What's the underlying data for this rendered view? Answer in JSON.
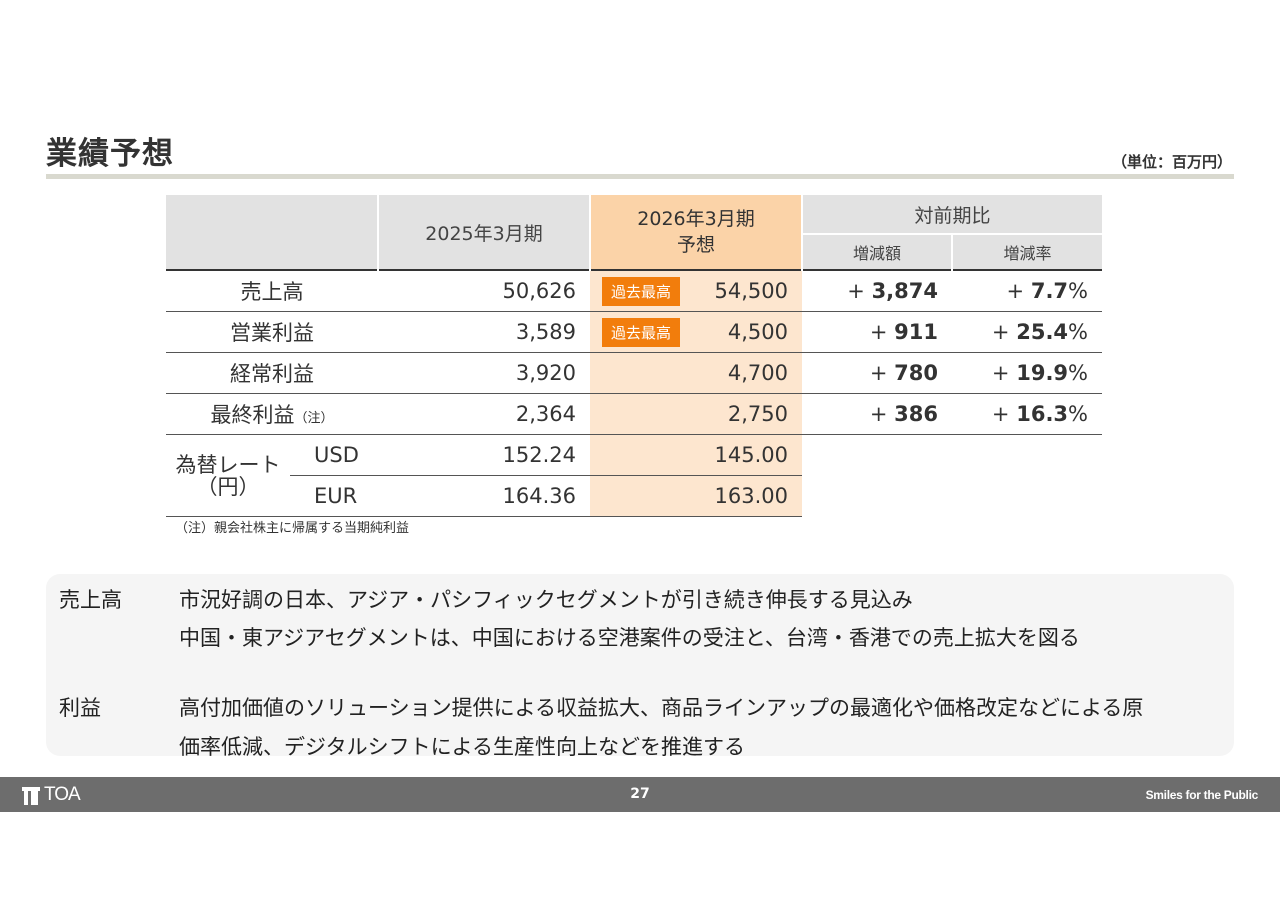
{
  "page": {
    "title": "業績予想",
    "unit": "（単位：百万円）",
    "page_number": "27"
  },
  "table": {
    "headers": {
      "prior": "2025年3月期",
      "forecast_line1": "2026年3月期",
      "forecast_line2": "予想",
      "comparison": "対前期比",
      "diff_amount": "増減額",
      "diff_rate": "増減率"
    },
    "record_badge": "過去最高",
    "rows": [
      {
        "label": "売上高",
        "note": "",
        "prior": "50,626",
        "forecast": "54,500",
        "record": true,
        "diff_sign": "+",
        "diff": "3,874",
        "rate_sign": "+",
        "rate": "7.7",
        "pct": "%"
      },
      {
        "label": "営業利益",
        "note": "",
        "prior": "3,589",
        "forecast": "4,500",
        "record": true,
        "diff_sign": "+",
        "diff": "911",
        "rate_sign": "+",
        "rate": "25.4",
        "pct": "%"
      },
      {
        "label": "経常利益",
        "note": "",
        "prior": "3,920",
        "forecast": "4,700",
        "record": false,
        "diff_sign": "+",
        "diff": "780",
        "rate_sign": "+",
        "rate": "19.9",
        "pct": "%"
      },
      {
        "label": "最終利益",
        "note": "（注）",
        "prior": "2,364",
        "forecast": "2,750",
        "record": false,
        "diff_sign": "+",
        "diff": "386",
        "rate_sign": "+",
        "rate": "16.3",
        "pct": "%"
      }
    ],
    "fx": {
      "label_line1": "為替レート",
      "label_line2": "（円）",
      "usd": {
        "currency": "USD",
        "prior": "152.24",
        "forecast": "145.00"
      },
      "eur": {
        "currency": "EUR",
        "prior": "164.36",
        "forecast": "163.00"
      }
    },
    "footnote": "（注）親会社株主に帰属する当期純利益"
  },
  "summary": {
    "sales_label": "売上高",
    "sales_line1": "市況好調の日本、アジア・パシフィックセグメントが引き続き伸長する見込み",
    "sales_line2": "中国・東アジアセグメントは、中国における空港案件の受注と、台湾・香港での売上拡大を図る",
    "profit_label": "利益",
    "profit_line1": "高付加価値のソリューション提供による収益拡大、商品ラインアップの最適化や価格改定などによる原",
    "profit_line2": "価率低減、デジタルシフトによる生産性向上などを推進する"
  },
  "footer": {
    "logo_text": "TOA",
    "tagline": "Smiles for the Public"
  },
  "colors": {
    "accent_orange": "#f27d0c",
    "forecast_bg": "#fde6cf",
    "header_gray": "#e2e2e2",
    "footer_gray": "#6d6d6d"
  }
}
